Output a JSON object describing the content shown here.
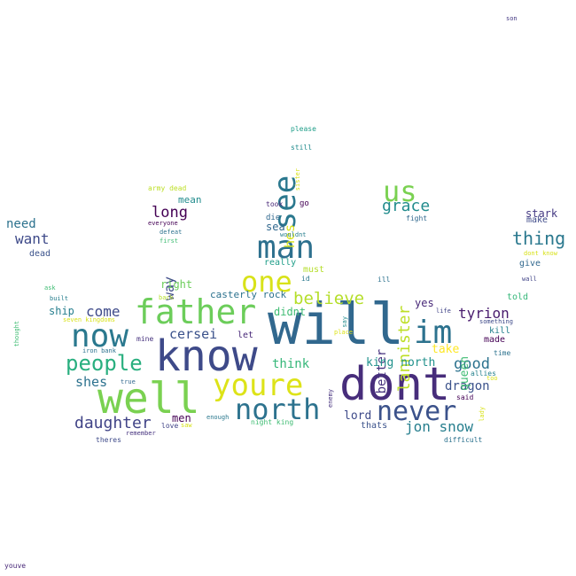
{
  "words": [
    {
      "text": "will",
      "color": "#31688e"
    },
    {
      "text": "know",
      "color": "#3e4a89"
    },
    {
      "text": "dont",
      "color": "#472d7b"
    },
    {
      "text": "well",
      "color": "#7ad151"
    },
    {
      "text": "father",
      "color": "#6ccd5a"
    },
    {
      "text": "youre",
      "color": "#dde318"
    },
    {
      "text": "im",
      "color": "#2c728e"
    },
    {
      "text": "now",
      "color": "#2a788e"
    },
    {
      "text": "man",
      "color": "#2d708e"
    },
    {
      "text": "north",
      "color": "#2c728e"
    },
    {
      "text": "never",
      "color": "#3b528b"
    },
    {
      "text": "see",
      "color": "#2a788e"
    },
    {
      "text": "one",
      "color": "#d8e219"
    },
    {
      "text": "us",
      "color": "#7ad151"
    },
    {
      "text": "people",
      "color": "#29af7f"
    },
    {
      "text": "daughter",
      "color": "#414487"
    },
    {
      "text": "thing",
      "color": "#2a788e"
    },
    {
      "text": "long",
      "color": "#440154"
    },
    {
      "text": "believe",
      "color": "#b5de2b"
    },
    {
      "text": "grace",
      "color": "#228c8d"
    },
    {
      "text": "lannister",
      "color": "#bddf26"
    },
    {
      "text": "good",
      "color": "#2c728e"
    },
    {
      "text": "tyrion",
      "color": "#481b6d"
    },
    {
      "text": "jon snow",
      "color": "#277f8e"
    },
    {
      "text": "come",
      "color": "#3e4a89"
    },
    {
      "text": "cersei",
      "color": "#3b528b"
    },
    {
      "text": "want",
      "color": "#3e4a89"
    },
    {
      "text": "way",
      "color": "#3e4a89"
    },
    {
      "text": "hes",
      "color": "#d8e219"
    },
    {
      "text": "think",
      "color": "#35b779"
    },
    {
      "text": "shes",
      "color": "#2c728e"
    },
    {
      "text": "better",
      "color": "#46327e"
    },
    {
      "text": "dragon",
      "color": "#3b528b"
    },
    {
      "text": "king north",
      "color": "#21918c"
    },
    {
      "text": "queen",
      "color": "#3fbc73"
    },
    {
      "text": "need",
      "color": "#2c728e"
    },
    {
      "text": "stark",
      "color": "#443983"
    },
    {
      "text": "right",
      "color": "#6ccd5a"
    },
    {
      "text": "casterly rock",
      "color": "#2c728e"
    },
    {
      "text": "didnt",
      "color": "#3fbc73"
    },
    {
      "text": "men",
      "color": "#440154"
    },
    {
      "text": "lord",
      "color": "#3e4a89"
    },
    {
      "text": "take",
      "color": "#fde725"
    },
    {
      "text": "yes",
      "color": "#482878"
    },
    {
      "text": "sea",
      "color": "#31688e"
    },
    {
      "text": "ship",
      "color": "#277f8e"
    },
    {
      "text": "mean",
      "color": "#228c8d"
    },
    {
      "text": "really",
      "color": "#1f9e89"
    },
    {
      "text": "must",
      "color": "#b5de2b"
    },
    {
      "text": "let",
      "color": "#482878"
    },
    {
      "text": "thats",
      "color": "#3b528b"
    },
    {
      "text": "told",
      "color": "#35b779"
    },
    {
      "text": "give",
      "color": "#31688e"
    },
    {
      "text": "make",
      "color": "#3e4a89"
    },
    {
      "text": "made",
      "color": "#440154"
    },
    {
      "text": "kill",
      "color": "#26828e"
    },
    {
      "text": "dead",
      "color": "#3b528b"
    },
    {
      "text": "go",
      "color": "#440154"
    },
    {
      "text": "please",
      "color": "#1f9e89"
    },
    {
      "text": "still",
      "color": "#228c8d"
    },
    {
      "text": "sister",
      "color": "#d8e219"
    },
    {
      "text": "army dead",
      "color": "#bddf26"
    },
    {
      "text": "took",
      "color": "#482878"
    },
    {
      "text": "die",
      "color": "#31688e"
    },
    {
      "text": "everyone",
      "color": "#440154"
    },
    {
      "text": "wouldnt",
      "color": "#277f8e"
    },
    {
      "text": "defeat",
      "color": "#2c728e"
    },
    {
      "text": "first",
      "color": "#3fbc73"
    },
    {
      "text": "fight",
      "color": "#31688e"
    },
    {
      "text": "dont know",
      "color": "#d8e219"
    },
    {
      "text": "wall",
      "color": "#414487"
    },
    {
      "text": "ill",
      "color": "#2c728e"
    },
    {
      "text": "id",
      "color": "#2a788e"
    },
    {
      "text": "back",
      "color": "#b5de2b"
    },
    {
      "text": "ask",
      "color": "#3fbc73"
    },
    {
      "text": "built",
      "color": "#277f8e"
    },
    {
      "text": "seven kingdoms",
      "color": "#d8e219"
    },
    {
      "text": "mine",
      "color": "#46327e"
    },
    {
      "text": "iron bank",
      "color": "#2c728e"
    },
    {
      "text": "true",
      "color": "#31688e"
    },
    {
      "text": "thought",
      "color": "#3fbc73"
    },
    {
      "text": "life",
      "color": "#414487"
    },
    {
      "text": "something",
      "color": "#3e4a89"
    },
    {
      "text": "place",
      "color": "#dde318"
    },
    {
      "text": "say",
      "color": "#228c8d"
    },
    {
      "text": "time",
      "color": "#2c728e"
    },
    {
      "text": "allies",
      "color": "#26828e"
    },
    {
      "text": "too",
      "color": "#dde318"
    },
    {
      "text": "said",
      "color": "#440154"
    },
    {
      "text": "enemy",
      "color": "#46327e"
    },
    {
      "text": "lady",
      "color": "#d8e219"
    },
    {
      "text": "remember",
      "color": "#46327e"
    },
    {
      "text": "love",
      "color": "#414487"
    },
    {
      "text": "saw",
      "color": "#d8e219"
    },
    {
      "text": "enough",
      "color": "#2a788e"
    },
    {
      "text": "night king",
      "color": "#3fbc73"
    },
    {
      "text": "theres",
      "color": "#3e4a89"
    },
    {
      "text": "difficult",
      "color": "#2c728e"
    },
    {
      "text": "son",
      "color": "#443983"
    },
    {
      "text": "youve",
      "color": "#482878"
    }
  ]
}
